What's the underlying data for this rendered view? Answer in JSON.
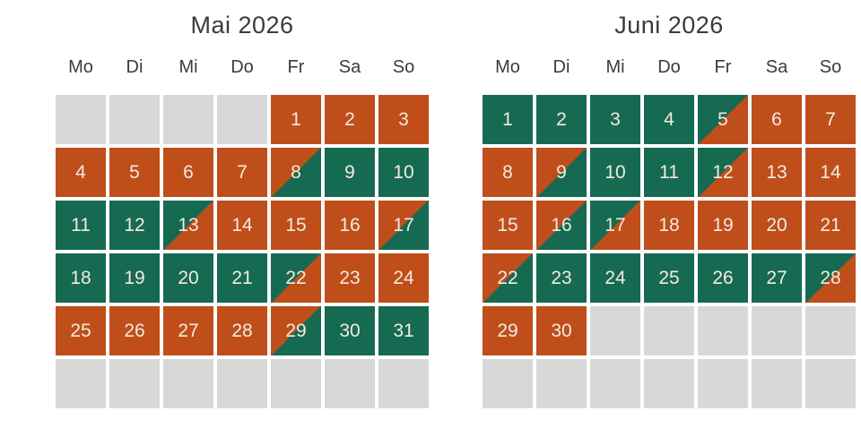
{
  "colors": {
    "occupied": "#bf4e1a",
    "free": "#166a51",
    "empty_cell": "#d8d8d8",
    "day_text": "#f2ebe0",
    "heading_text": "#3b3b3b",
    "background": "#ffffff"
  },
  "calendars": [
    {
      "title": "Mai 2026",
      "weekdays": [
        "Mo",
        "Di",
        "Mi",
        "Do",
        "Fr",
        "Sa",
        "So"
      ],
      "cells": [
        {
          "day": "",
          "state": "empty"
        },
        {
          "day": "",
          "state": "empty"
        },
        {
          "day": "",
          "state": "empty"
        },
        {
          "day": "",
          "state": "empty"
        },
        {
          "day": "1",
          "state": "occupied"
        },
        {
          "day": "2",
          "state": "occupied"
        },
        {
          "day": "3",
          "state": "occupied"
        },
        {
          "day": "4",
          "state": "occupied"
        },
        {
          "day": "5",
          "state": "occupied"
        },
        {
          "day": "6",
          "state": "occupied"
        },
        {
          "day": "7",
          "state": "occupied"
        },
        {
          "day": "8",
          "state": "departure"
        },
        {
          "day": "9",
          "state": "free"
        },
        {
          "day": "10",
          "state": "free"
        },
        {
          "day": "11",
          "state": "free"
        },
        {
          "day": "12",
          "state": "free"
        },
        {
          "day": "13",
          "state": "arrival"
        },
        {
          "day": "14",
          "state": "occupied"
        },
        {
          "day": "15",
          "state": "occupied"
        },
        {
          "day": "16",
          "state": "occupied"
        },
        {
          "day": "17",
          "state": "departure"
        },
        {
          "day": "18",
          "state": "free"
        },
        {
          "day": "19",
          "state": "free"
        },
        {
          "day": "20",
          "state": "free"
        },
        {
          "day": "21",
          "state": "free"
        },
        {
          "day": "22",
          "state": "arrival"
        },
        {
          "day": "23",
          "state": "occupied"
        },
        {
          "day": "24",
          "state": "occupied"
        },
        {
          "day": "25",
          "state": "occupied"
        },
        {
          "day": "26",
          "state": "occupied"
        },
        {
          "day": "27",
          "state": "occupied"
        },
        {
          "day": "28",
          "state": "occupied"
        },
        {
          "day": "29",
          "state": "departure"
        },
        {
          "day": "30",
          "state": "free"
        },
        {
          "day": "31",
          "state": "free"
        },
        {
          "day": "",
          "state": "empty"
        },
        {
          "day": "",
          "state": "empty"
        },
        {
          "day": "",
          "state": "empty"
        },
        {
          "day": "",
          "state": "empty"
        },
        {
          "day": "",
          "state": "empty"
        },
        {
          "day": "",
          "state": "empty"
        },
        {
          "day": "",
          "state": "empty"
        }
      ]
    },
    {
      "title": "Juni 2026",
      "weekdays": [
        "Mo",
        "Di",
        "Mi",
        "Do",
        "Fr",
        "Sa",
        "So"
      ],
      "cells": [
        {
          "day": "1",
          "state": "free"
        },
        {
          "day": "2",
          "state": "free"
        },
        {
          "day": "3",
          "state": "free"
        },
        {
          "day": "4",
          "state": "free"
        },
        {
          "day": "5",
          "state": "arrival"
        },
        {
          "day": "6",
          "state": "occupied"
        },
        {
          "day": "7",
          "state": "occupied"
        },
        {
          "day": "8",
          "state": "occupied"
        },
        {
          "day": "9",
          "state": "departure"
        },
        {
          "day": "10",
          "state": "free"
        },
        {
          "day": "11",
          "state": "free"
        },
        {
          "day": "12",
          "state": "arrival"
        },
        {
          "day": "13",
          "state": "occupied"
        },
        {
          "day": "14",
          "state": "occupied"
        },
        {
          "day": "15",
          "state": "occupied"
        },
        {
          "day": "16",
          "state": "departure"
        },
        {
          "day": "17",
          "state": "arrival"
        },
        {
          "day": "18",
          "state": "occupied"
        },
        {
          "day": "19",
          "state": "occupied"
        },
        {
          "day": "20",
          "state": "occupied"
        },
        {
          "day": "21",
          "state": "occupied"
        },
        {
          "day": "22",
          "state": "departure"
        },
        {
          "day": "23",
          "state": "free"
        },
        {
          "day": "24",
          "state": "free"
        },
        {
          "day": "25",
          "state": "free"
        },
        {
          "day": "26",
          "state": "free"
        },
        {
          "day": "27",
          "state": "free"
        },
        {
          "day": "28",
          "state": "arrival"
        },
        {
          "day": "29",
          "state": "occupied"
        },
        {
          "day": "30",
          "state": "occupied"
        },
        {
          "day": "",
          "state": "empty"
        },
        {
          "day": "",
          "state": "empty"
        },
        {
          "day": "",
          "state": "empty"
        },
        {
          "day": "",
          "state": "empty"
        },
        {
          "day": "",
          "state": "empty"
        },
        {
          "day": "",
          "state": "empty"
        },
        {
          "day": "",
          "state": "empty"
        },
        {
          "day": "",
          "state": "empty"
        },
        {
          "day": "",
          "state": "empty"
        },
        {
          "day": "",
          "state": "empty"
        },
        {
          "day": "",
          "state": "empty"
        },
        {
          "day": "",
          "state": "empty"
        }
      ]
    }
  ]
}
